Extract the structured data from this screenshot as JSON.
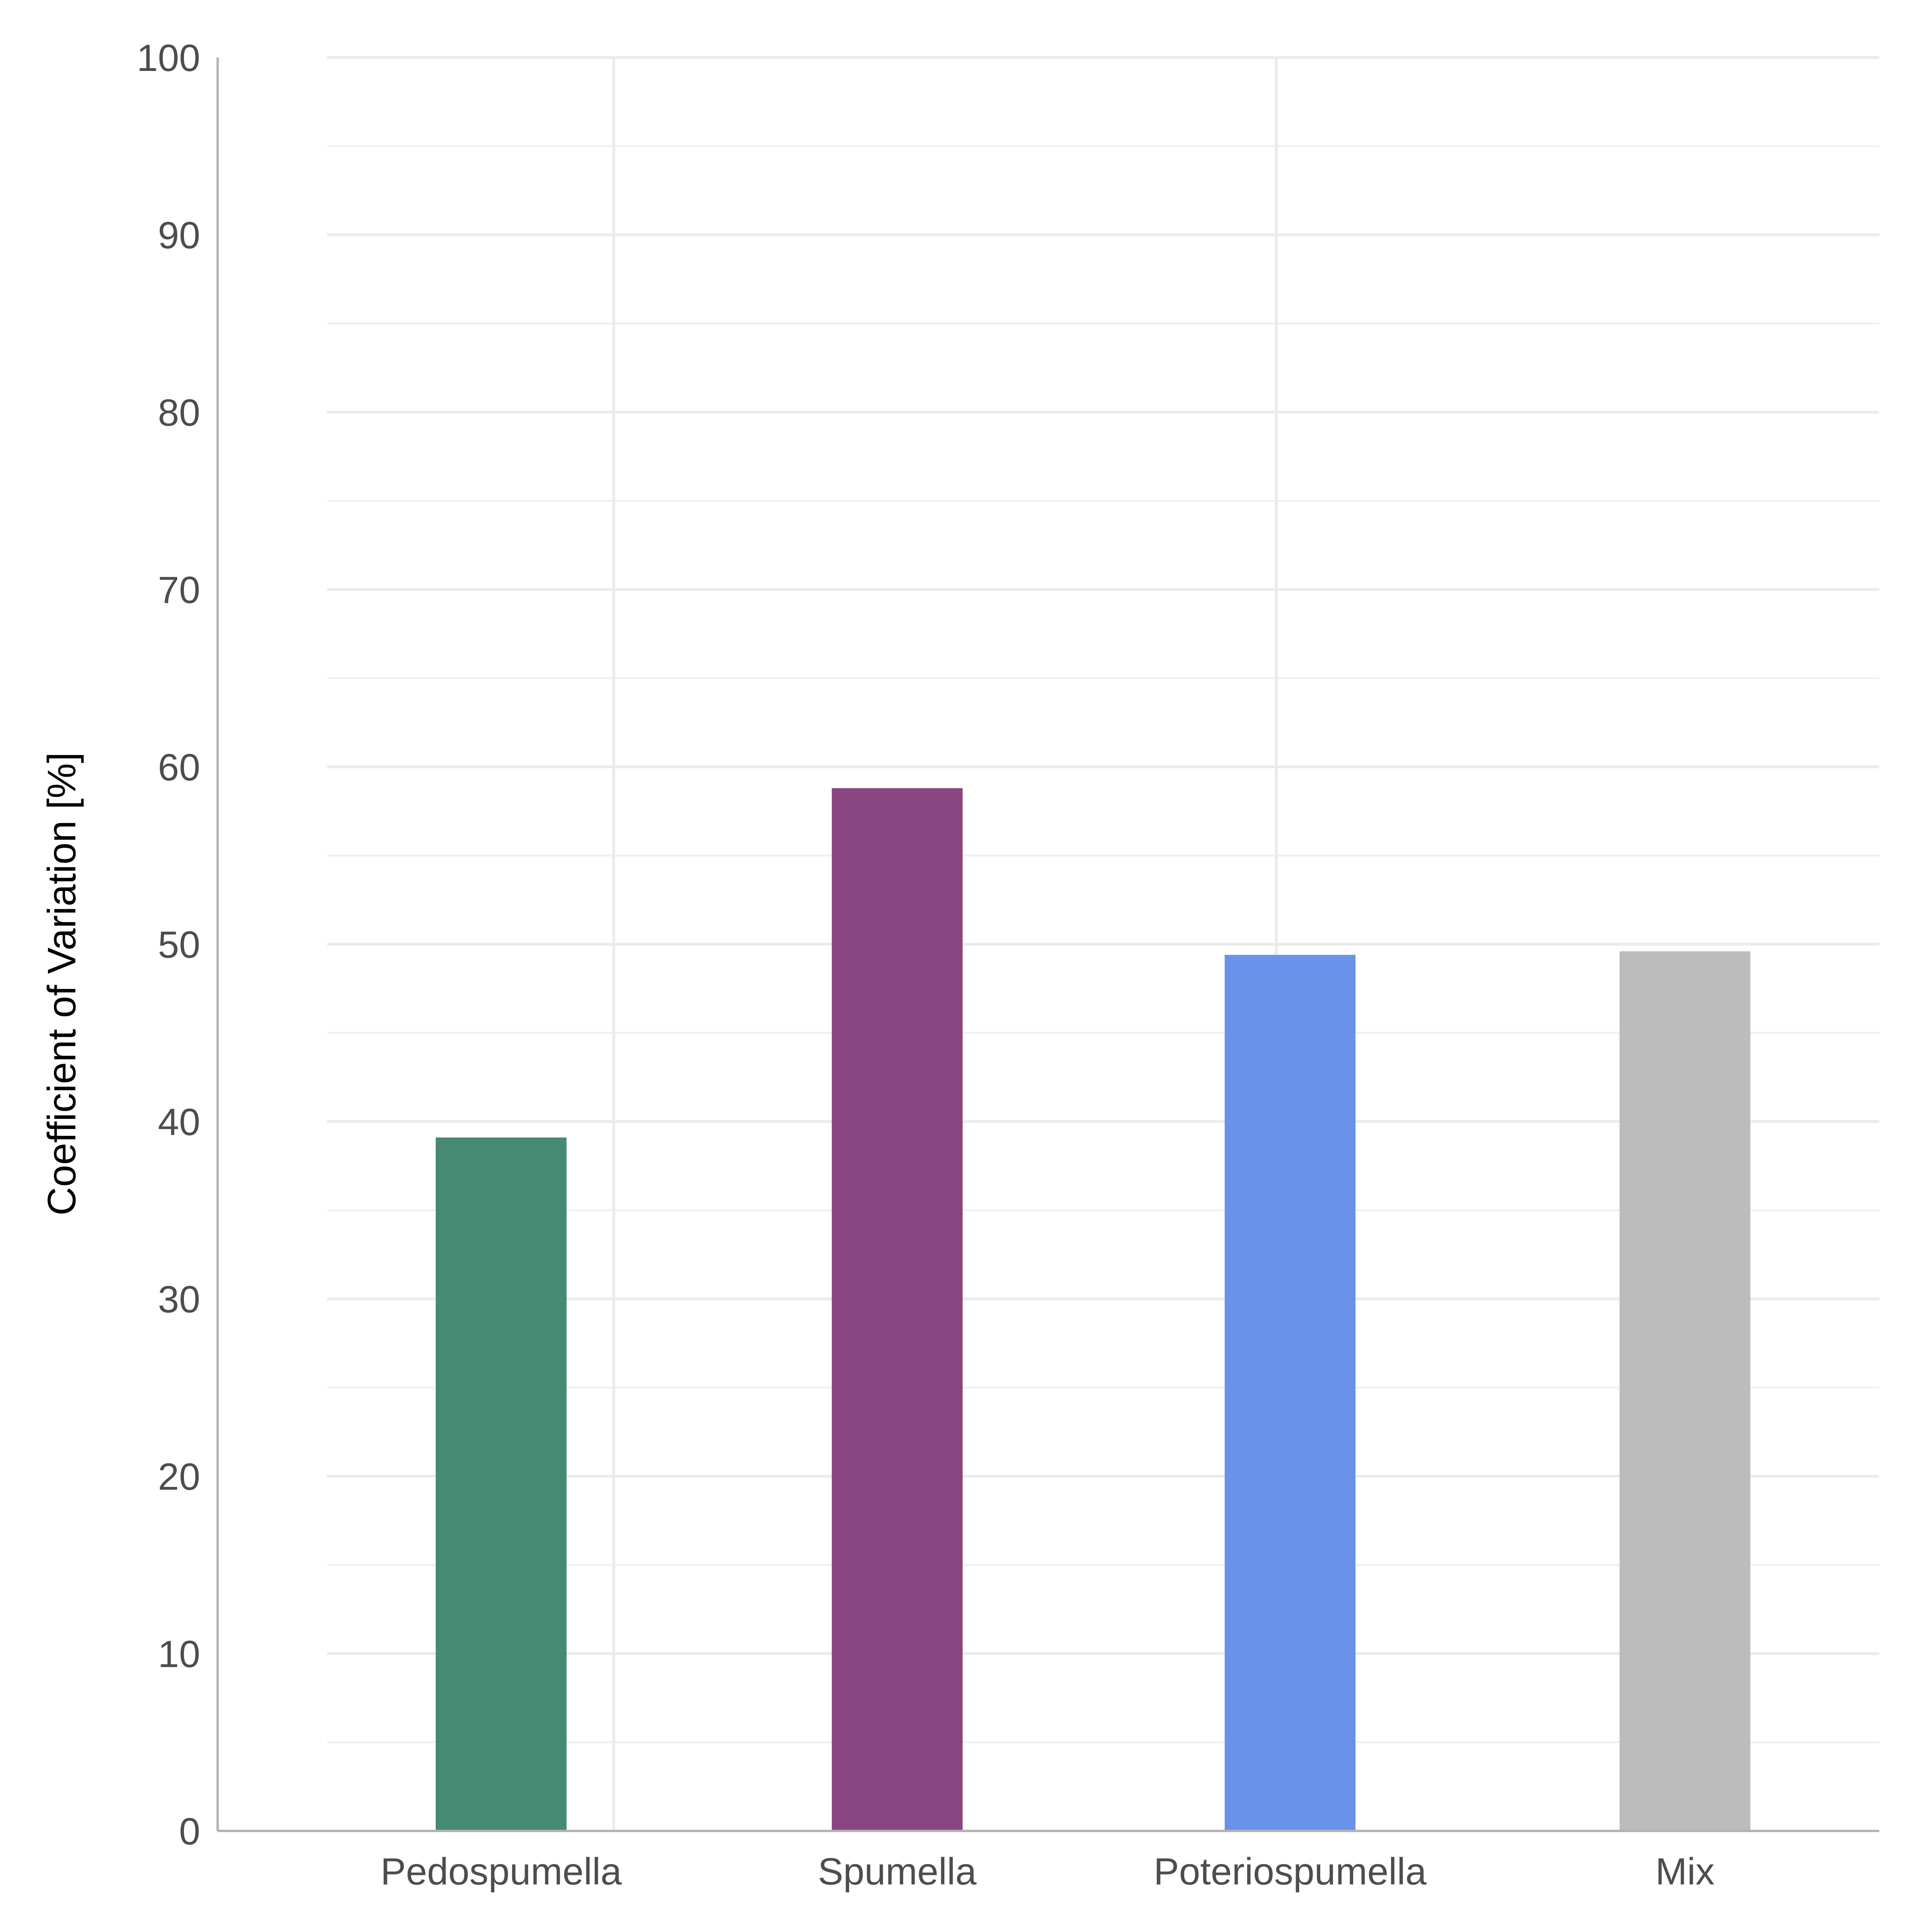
{
  "chart_data": {
    "type": "bar",
    "title": "",
    "xlabel": "",
    "ylabel": "Coefficient of Variation [%]",
    "categories": [
      "Pedospumella",
      "Spumella",
      "Poteriospumella",
      "Mix"
    ],
    "values": [
      39.1,
      58.8,
      49.4,
      49.6
    ],
    "colors": [
      "#468a73",
      "#8a4683",
      "#6893e8",
      "#bcbcbc"
    ],
    "ylim": [
      0,
      100
    ],
    "yticks": [
      0,
      10,
      20,
      30,
      40,
      50,
      60,
      70,
      80,
      90,
      100
    ],
    "ytick_labels": [
      "0",
      "10",
      "20",
      "30",
      "40",
      "50",
      "60",
      "70",
      "80",
      "90",
      "100"
    ],
    "grid": true,
    "legend": "none"
  }
}
